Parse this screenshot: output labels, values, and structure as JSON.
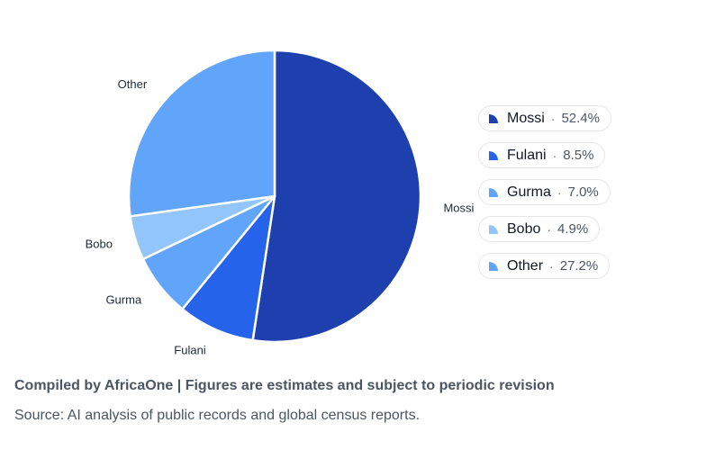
{
  "chart_data": {
    "type": "pie",
    "title": "",
    "categories": [
      "Mossi",
      "Fulani",
      "Gurma",
      "Bobo",
      "Other"
    ],
    "values": [
      52.4,
      8.5,
      7.0,
      4.9,
      27.2
    ],
    "value_labels": [
      "52.4%",
      "8.5%",
      "7.0%",
      "4.9%",
      "27.2%"
    ],
    "colors": [
      "#1e40af",
      "#2563eb",
      "#60a5fa",
      "#93c5fd",
      "#60a5fa"
    ],
    "start": "top",
    "direction": "clockwise",
    "legend": "right",
    "legend_separator": "·"
  },
  "footer": {
    "credit": "Compiled by AfricaOne | Figures are estimates and subject to periodic revision",
    "source": "Source: AI analysis of public records and global census reports."
  }
}
